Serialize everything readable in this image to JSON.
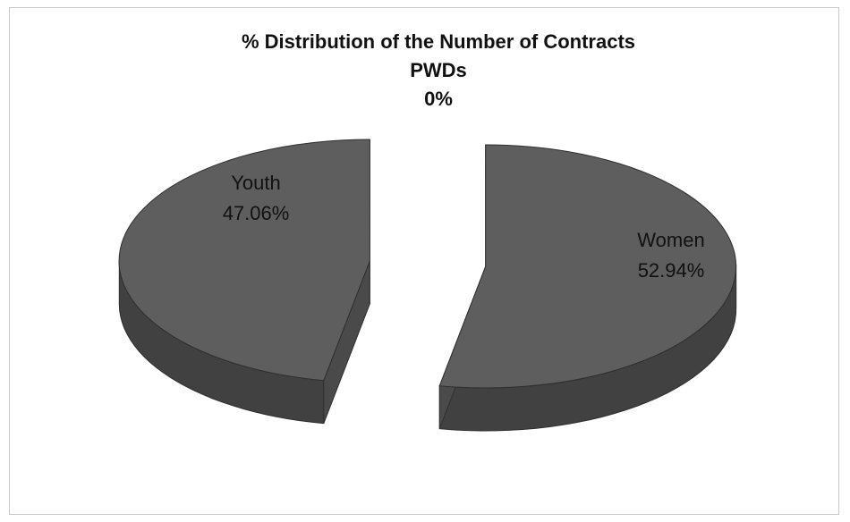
{
  "chart_data": {
    "type": "pie",
    "title": "% Distribution of the Number of Contracts",
    "categories": [
      "Youth",
      "Women",
      "PWDs"
    ],
    "values": [
      47.06,
      52.94,
      0
    ],
    "labels": {
      "youth_name": "Youth",
      "youth_value": "47.06%",
      "women_name": "Women",
      "women_value": "52.94%",
      "pwd_name": "PWDs",
      "pwd_value": "0%"
    },
    "style": "3d-exploded",
    "legend": "none",
    "colors": {
      "top": "#5e5e5e",
      "side": "#414141",
      "edge": "#2f2f2f"
    }
  }
}
